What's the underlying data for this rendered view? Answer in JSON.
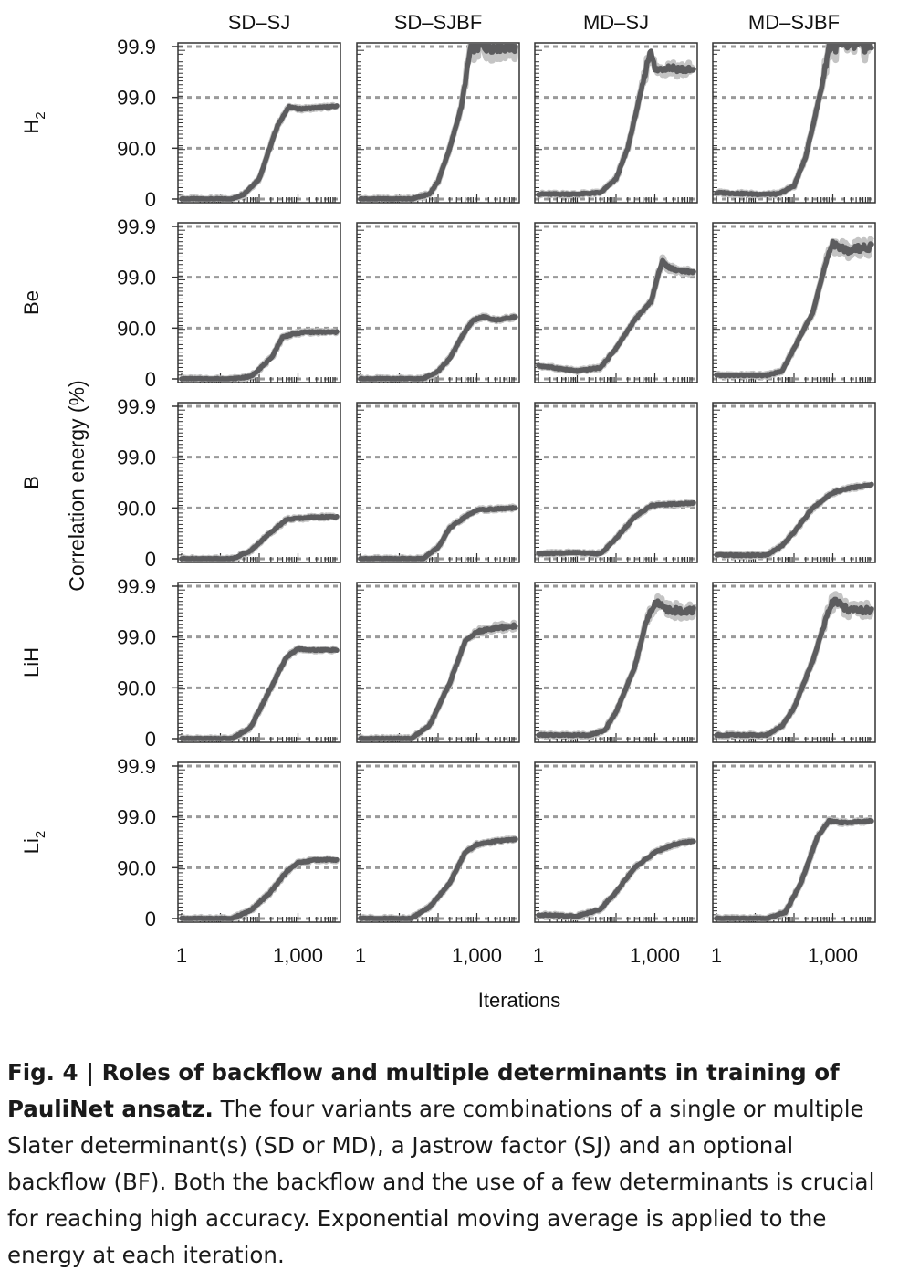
{
  "figure": {
    "columns": [
      "SD–SJ",
      "SD–SJBF",
      "MD–SJ",
      "MD–SJBF"
    ],
    "rows": [
      {
        "key": "H2",
        "base": "H",
        "sub": "2"
      },
      {
        "key": "Be",
        "base": "Be",
        "sub": ""
      },
      {
        "key": "B",
        "base": "B",
        "sub": ""
      },
      {
        "key": "LiH",
        "base": "LiH",
        "sub": ""
      },
      {
        "key": "Li2",
        "base": "Li",
        "sub": "2"
      }
    ],
    "y_label": "Correlation energy (%)",
    "x_label": "Iterations",
    "y_tick_labels": [
      "0",
      "90.0",
      "99.0",
      "99.9"
    ],
    "x_tick_labels": [
      "1",
      "1,000"
    ]
  },
  "caption": {
    "bold": "Fig. 4 | Roles of backflow and multiple determinants in training of PauliNet ansatz.",
    "text": " The four variants are combinations of a single or multiple Slater determinant(s) (SD or MD), a Jastrow factor (SJ) and an optional backflow (BF). Both the backflow and the use of a few determinants is crucial for reaching high accuracy. Exponential moving average is applied to the energy at each iteration."
  },
  "chart_data": {
    "type": "line",
    "title": "",
    "xlabel": "Iterations",
    "ylabel": "Correlation energy (%)",
    "x_scale": "log",
    "xlim": [
      1,
      10000
    ],
    "y_scale": "-log10(1 - E/100), 0 to 3",
    "y_ticks": [
      0,
      90.0,
      99.0,
      99.9
    ],
    "series_style": "moving average (dark) with raw spread (light grey)",
    "panels": [
      {
        "row": "H2",
        "column": "SD–SJ",
        "x": [
          1,
          10,
          20,
          40,
          100,
          300,
          600,
          1000,
          3000,
          10000
        ],
        "y": [
          0,
          0,
          0,
          20,
          60,
          96.5,
          98.5,
          98.3,
          98.4,
          98.5
        ]
      },
      {
        "row": "H2",
        "column": "SD–SJBF",
        "x": [
          1,
          20,
          60,
          100,
          200,
          400,
          700,
          1000,
          2000,
          10000
        ],
        "y": [
          0,
          0,
          20,
          55,
          90,
          98.5,
          99.9,
          99.9,
          99.9,
          99.9
        ]
      },
      {
        "row": "H2",
        "column": "MD–SJ",
        "x": [
          1,
          10,
          40,
          100,
          200,
          500,
          800,
          1000,
          2000,
          10000
        ],
        "y": [
          20,
          20,
          25,
          60,
          90,
          99.5,
          99.9,
          99.7,
          99.75,
          99.7
        ]
      },
      {
        "row": "H2",
        "column": "MD–SJBF",
        "x": [
          1,
          10,
          40,
          100,
          200,
          500,
          800,
          1000,
          2000,
          10000
        ],
        "y": [
          25,
          20,
          20,
          45,
          85,
          99.3,
          99.9,
          99.9,
          99.9,
          99.9
        ]
      },
      {
        "row": "Be",
        "column": "SD–SJ",
        "x": [
          1,
          20,
          60,
          200,
          400,
          800,
          1500,
          3000,
          10000
        ],
        "y": [
          0,
          0,
          10,
          60,
          85,
          87,
          88,
          88,
          88
        ]
      },
      {
        "row": "Be",
        "column": "SD–SJBF",
        "x": [
          1,
          40,
          100,
          200,
          400,
          800,
          1500,
          3000,
          10000
        ],
        "y": [
          0,
          0,
          30,
          60,
          85,
          93,
          94,
          93,
          94
        ]
      },
      {
        "row": "Be",
        "column": "MD–SJ",
        "x": [
          1,
          10,
          40,
          100,
          300,
          800,
          1500,
          3000,
          10000
        ],
        "y": [
          45,
          30,
          40,
          75,
          93,
          97,
          99.5,
          99.3,
          99.2
        ]
      },
      {
        "row": "Be",
        "column": "MD–SJBF",
        "x": [
          1,
          20,
          50,
          100,
          300,
          600,
          1000,
          2000,
          10000
        ],
        "y": [
          15,
          15,
          30,
          75,
          95,
          99.3,
          99.8,
          99.7,
          99.75
        ]
      },
      {
        "row": "B",
        "column": "SD–SJ",
        "x": [
          1,
          20,
          60,
          200,
          500,
          1000,
          3000,
          10000
        ],
        "y": [
          0,
          0,
          30,
          70,
          83,
          84,
          85,
          85
        ]
      },
      {
        "row": "B",
        "column": "SD–SJBF",
        "x": [
          1,
          40,
          100,
          200,
          500,
          1000,
          3000,
          10000
        ],
        "y": [
          0,
          0,
          40,
          75,
          85,
          89,
          89.5,
          90
        ]
      },
      {
        "row": "B",
        "column": "MD–SJ",
        "x": [
          1,
          10,
          40,
          100,
          300,
          800,
          2000,
          10000
        ],
        "y": [
          20,
          25,
          20,
          60,
          85,
          91,
          91.5,
          92
        ]
      },
      {
        "row": "B",
        "column": "MD–SJBF",
        "x": [
          1,
          20,
          50,
          100,
          300,
          1000,
          3000,
          10000
        ],
        "y": [
          15,
          15,
          45,
          70,
          90,
          95,
          96,
          96.5
        ]
      },
      {
        "row": "LiH",
        "column": "SD–SJ",
        "x": [
          1,
          20,
          60,
          200,
          500,
          1000,
          2000,
          10000
        ],
        "y": [
          0,
          0,
          40,
          90,
          97.5,
          98.3,
          98.2,
          98.2
        ]
      },
      {
        "row": "LiH",
        "column": "SD–SJBF",
        "x": [
          1,
          20,
          60,
          200,
          500,
          1000,
          2000,
          10000
        ],
        "y": [
          0,
          0,
          45,
          92,
          98.8,
          99.2,
          99.3,
          99.4
        ]
      },
      {
        "row": "LiH",
        "column": "MD–SJ",
        "x": [
          1,
          20,
          50,
          100,
          300,
          600,
          1000,
          2000,
          10000
        ],
        "y": [
          15,
          15,
          30,
          70,
          96,
          99.5,
          99.8,
          99.7,
          99.7
        ]
      },
      {
        "row": "LiH",
        "column": "MD–SJBF",
        "x": [
          1,
          20,
          50,
          100,
          300,
          700,
          1000,
          3000,
          10000
        ],
        "y": [
          15,
          15,
          45,
          75,
          97,
          99.6,
          99.8,
          99.7,
          99.7
        ]
      },
      {
        "row": "Li2",
        "column": "SD–SJ",
        "x": [
          1,
          20,
          60,
          200,
          500,
          1000,
          3000,
          10000
        ],
        "y": [
          0,
          0,
          30,
          70,
          88,
          92,
          93,
          93
        ]
      },
      {
        "row": "Li2",
        "column": "SD–SJBF",
        "x": [
          1,
          20,
          60,
          200,
          500,
          1000,
          3000,
          10000
        ],
        "y": [
          0,
          0,
          40,
          80,
          95,
          96.5,
          97,
          97.2
        ]
      },
      {
        "row": "Li2",
        "column": "MD–SJ",
        "x": [
          1,
          10,
          40,
          100,
          300,
          1000,
          3000,
          10000
        ],
        "y": [
          15,
          10,
          35,
          70,
          90,
          95,
          96.5,
          97
        ]
      },
      {
        "row": "Li2",
        "column": "MD–SJBF",
        "x": [
          1,
          20,
          60,
          150,
          400,
          800,
          2000,
          10000
        ],
        "y": [
          0,
          0,
          25,
          80,
          97.5,
          98.8,
          98.7,
          98.8
        ]
      }
    ]
  }
}
